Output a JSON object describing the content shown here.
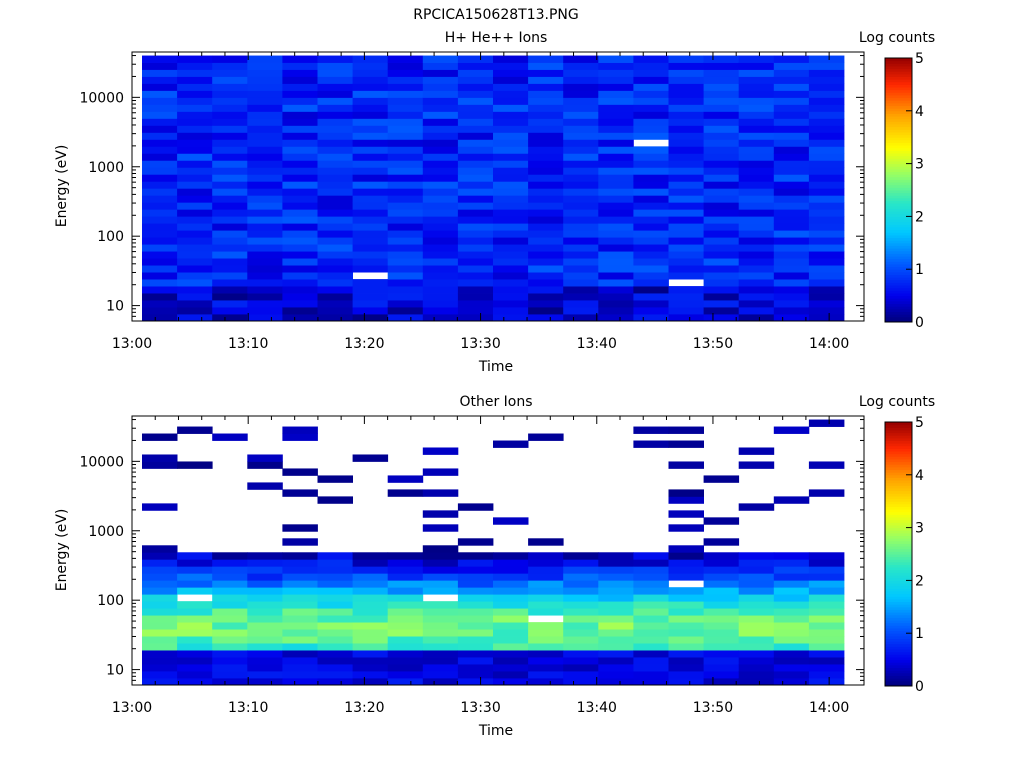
{
  "page_title": "RPCICA150628T13.PNG",
  "chart_data": [
    {
      "type": "heatmap",
      "title": "H+ He++ Ions",
      "xlabel": "Time",
      "ylabel": "Energy (eV)",
      "colorbar_label": "Log counts",
      "colorbar_ticks": [
        "0",
        "1",
        "2",
        "3",
        "4",
        "5"
      ],
      "colorbar_range": [
        0,
        5
      ],
      "yscale": "log",
      "ylim": [
        6,
        45000
      ],
      "y_ticks": [
        {
          "value": 10,
          "label": "10"
        },
        {
          "value": 100,
          "label": "100"
        },
        {
          "value": 1000,
          "label": "1000"
        },
        {
          "value": 10000,
          "label": "10000"
        }
      ],
      "x_ticks": [
        "13:00",
        "13:10",
        "13:20",
        "13:30",
        "13:40",
        "13:50",
        "14:00"
      ],
      "xlim": [
        "13:00",
        "14:03"
      ],
      "time_bins": [
        "13:00",
        "13:03",
        "13:07",
        "13:10",
        "13:13",
        "13:16",
        "13:20",
        "13:23",
        "13:26",
        "13:29",
        "13:33",
        "13:36",
        "13:39",
        "13:42",
        "13:45",
        "13:49",
        "13:52",
        "13:55",
        "13:58",
        "14:01"
      ],
      "energy_range_ev": [
        6,
        40000
      ],
      "profile": "flat",
      "base_log_counts": 0.75,
      "seed": 11,
      "missing": [
        [
          1,
          0,
          18
        ],
        [
          9,
          0,
          2
        ],
        [
          9,
          2,
          52
        ],
        [
          10,
          0,
          8
        ],
        [
          12,
          0,
          14
        ],
        [
          13,
          0,
          3
        ],
        [
          16,
          0,
          22
        ],
        [
          16,
          1,
          7
        ],
        [
          15,
          0,
          5
        ],
        [
          6,
          1,
          6
        ],
        [
          14,
          0,
          25
        ],
        [
          2,
          6,
          9
        ],
        [
          8,
          1,
          2
        ],
        [
          11,
          0,
          4
        ]
      ]
    },
    {
      "type": "heatmap",
      "title": "Other Ions",
      "xlabel": "Time",
      "ylabel": "Energy (eV)",
      "colorbar_label": "Log counts",
      "colorbar_ticks": [
        "0",
        "1",
        "2",
        "3",
        "4",
        "5"
      ],
      "colorbar_range": [
        0,
        5
      ],
      "yscale": "log",
      "ylim": [
        6,
        45000
      ],
      "y_ticks": [
        {
          "value": 10,
          "label": "10"
        },
        {
          "value": 100,
          "label": "100"
        },
        {
          "value": 1000,
          "label": "1000"
        },
        {
          "value": 10000,
          "label": "10000"
        }
      ],
      "x_ticks": [
        "13:00",
        "13:10",
        "13:20",
        "13:30",
        "13:40",
        "13:50",
        "14:00"
      ],
      "xlim": [
        "13:00",
        "14:03"
      ],
      "time_bins": [
        "13:00",
        "13:03",
        "13:07",
        "13:10",
        "13:13",
        "13:16",
        "13:20",
        "13:23",
        "13:26",
        "13:29",
        "13:33",
        "13:36",
        "13:39",
        "13:42",
        "13:45",
        "13:49",
        "13:52",
        "13:55",
        "13:58",
        "14:01"
      ],
      "energy_range_ev": [
        6,
        40000
      ],
      "profile": "peaked",
      "peak_energy_ev": 40,
      "peak_log_counts": 2.6,
      "cutoff_energy_ev": 500,
      "seed": 29,
      "missing": [
        [
          1,
          0,
          9
        ],
        [
          1,
          2,
          12
        ],
        [
          2,
          3,
          14
        ],
        [
          2,
          4,
          8
        ],
        [
          3,
          0,
          9
        ],
        [
          4,
          1,
          9
        ],
        [
          4,
          2,
          14
        ],
        [
          5,
          2,
          9
        ],
        [
          6,
          1,
          12
        ],
        [
          8,
          2,
          12
        ],
        [
          8,
          3,
          12
        ],
        [
          10,
          1,
          12
        ],
        [
          10,
          2,
          14
        ],
        [
          11,
          4,
          9
        ],
        [
          15,
          4,
          14
        ],
        [
          17,
          2,
          9
        ]
      ]
    }
  ]
}
